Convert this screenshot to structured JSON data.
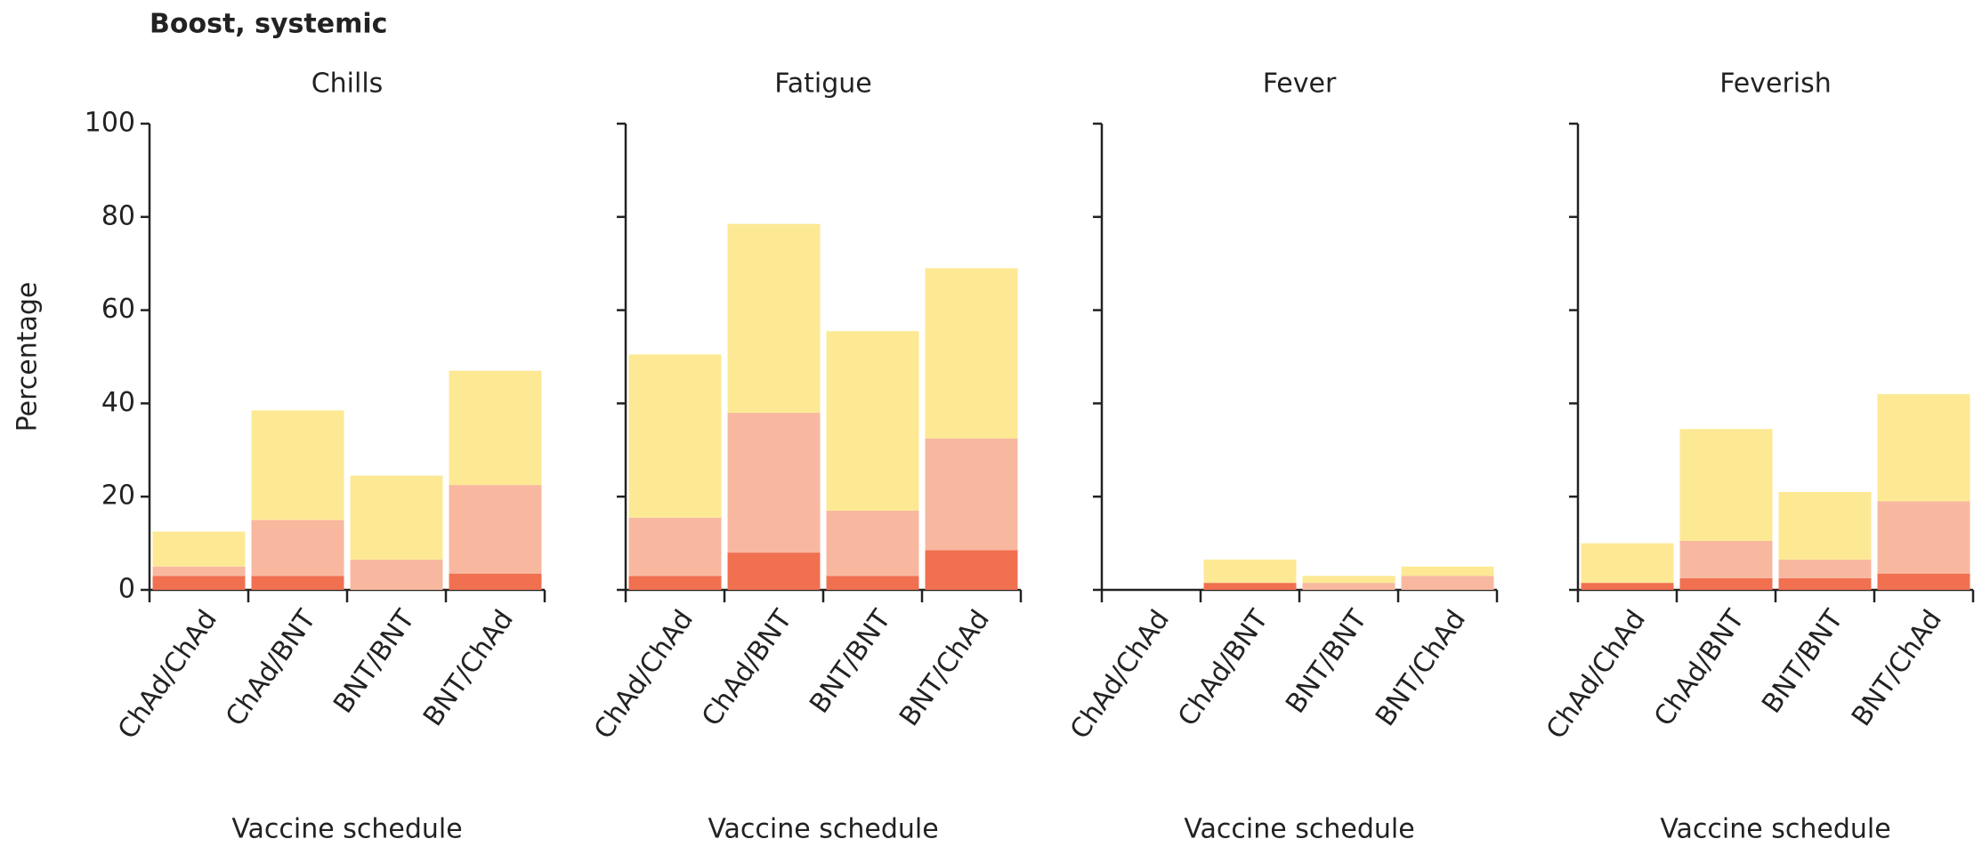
{
  "title": "Boost, systemic",
  "chart_data": [
    {
      "type": "stacked_bar",
      "title": "Chills",
      "y_label": "Percentage",
      "x_label": "Vaccine schedule",
      "categories": [
        "ChAd/ChAd",
        "ChAd/BNT",
        "BNT/BNT",
        "BNT/ChAd"
      ],
      "series": [
        {
          "color": "#f07050",
          "values": [
            3,
            3,
            0,
            3.5
          ]
        },
        {
          "color": "#f8b8a0",
          "values": [
            2,
            12,
            6.5,
            19
          ]
        },
        {
          "color": "#fde994",
          "values": [
            7.5,
            23.5,
            18,
            24.5
          ]
        }
      ],
      "ylim": [
        0,
        100
      ],
      "yticks": [
        0,
        20,
        40,
        60,
        80,
        100
      ]
    },
    {
      "type": "stacked_bar",
      "title": "Fatigue",
      "x_label": "Vaccine schedule",
      "categories": [
        "ChAd/ChAd",
        "ChAd/BNT",
        "BNT/BNT",
        "BNT/ChAd"
      ],
      "series": [
        {
          "color": "#f07050",
          "values": [
            3,
            8,
            3,
            8.5
          ]
        },
        {
          "color": "#f8b8a0",
          "values": [
            12.5,
            30,
            14,
            24
          ]
        },
        {
          "color": "#fde994",
          "values": [
            35,
            40.5,
            38.5,
            36.5
          ]
        }
      ],
      "ylim": [
        0,
        100
      ],
      "yticks": [
        0,
        20,
        40,
        60,
        80,
        100
      ]
    },
    {
      "type": "stacked_bar",
      "title": "Fever",
      "x_label": "Vaccine schedule",
      "categories": [
        "ChAd/ChAd",
        "ChAd/BNT",
        "BNT/BNT",
        "BNT/ChAd"
      ],
      "series": [
        {
          "color": "#f07050",
          "values": [
            0,
            1.5,
            0,
            0
          ]
        },
        {
          "color": "#f8b8a0",
          "values": [
            0,
            0,
            1.5,
            3
          ]
        },
        {
          "color": "#fde994",
          "values": [
            0,
            5,
            1.5,
            2
          ]
        }
      ],
      "ylim": [
        0,
        100
      ],
      "yticks": [
        0,
        20,
        40,
        60,
        80,
        100
      ]
    },
    {
      "type": "stacked_bar",
      "title": "Feverish",
      "x_label": "Vaccine schedule",
      "categories": [
        "ChAd/ChAd",
        "ChAd/BNT",
        "BNT/BNT",
        "BNT/ChAd"
      ],
      "series": [
        {
          "color": "#f07050",
          "values": [
            1.5,
            2.5,
            2.5,
            3.5
          ]
        },
        {
          "color": "#f8b8a0",
          "values": [
            0,
            8,
            4,
            15.5
          ]
        },
        {
          "color": "#fde994",
          "values": [
            8.5,
            24,
            14.5,
            23
          ]
        }
      ],
      "ylim": [
        0,
        100
      ],
      "yticks": [
        0,
        20,
        40,
        60,
        80,
        100
      ]
    }
  ]
}
